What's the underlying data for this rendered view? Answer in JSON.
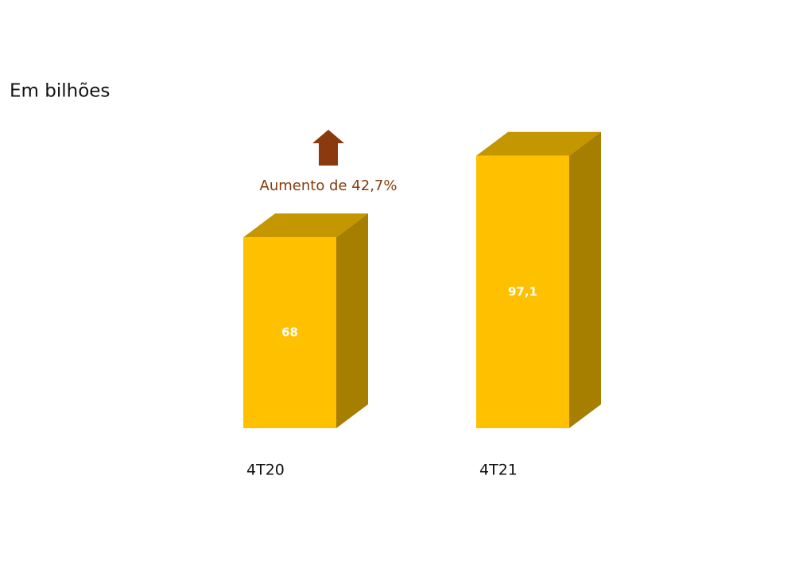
{
  "chart_data": {
    "type": "bar3d",
    "subtitle": "Em bilhões",
    "annotation": "Aumento de 42,7%",
    "categories": [
      "4T20",
      "4T21"
    ],
    "values": [
      68,
      97.1
    ],
    "value_labels": [
      "68",
      "97,1"
    ],
    "color": "#ffc000"
  }
}
